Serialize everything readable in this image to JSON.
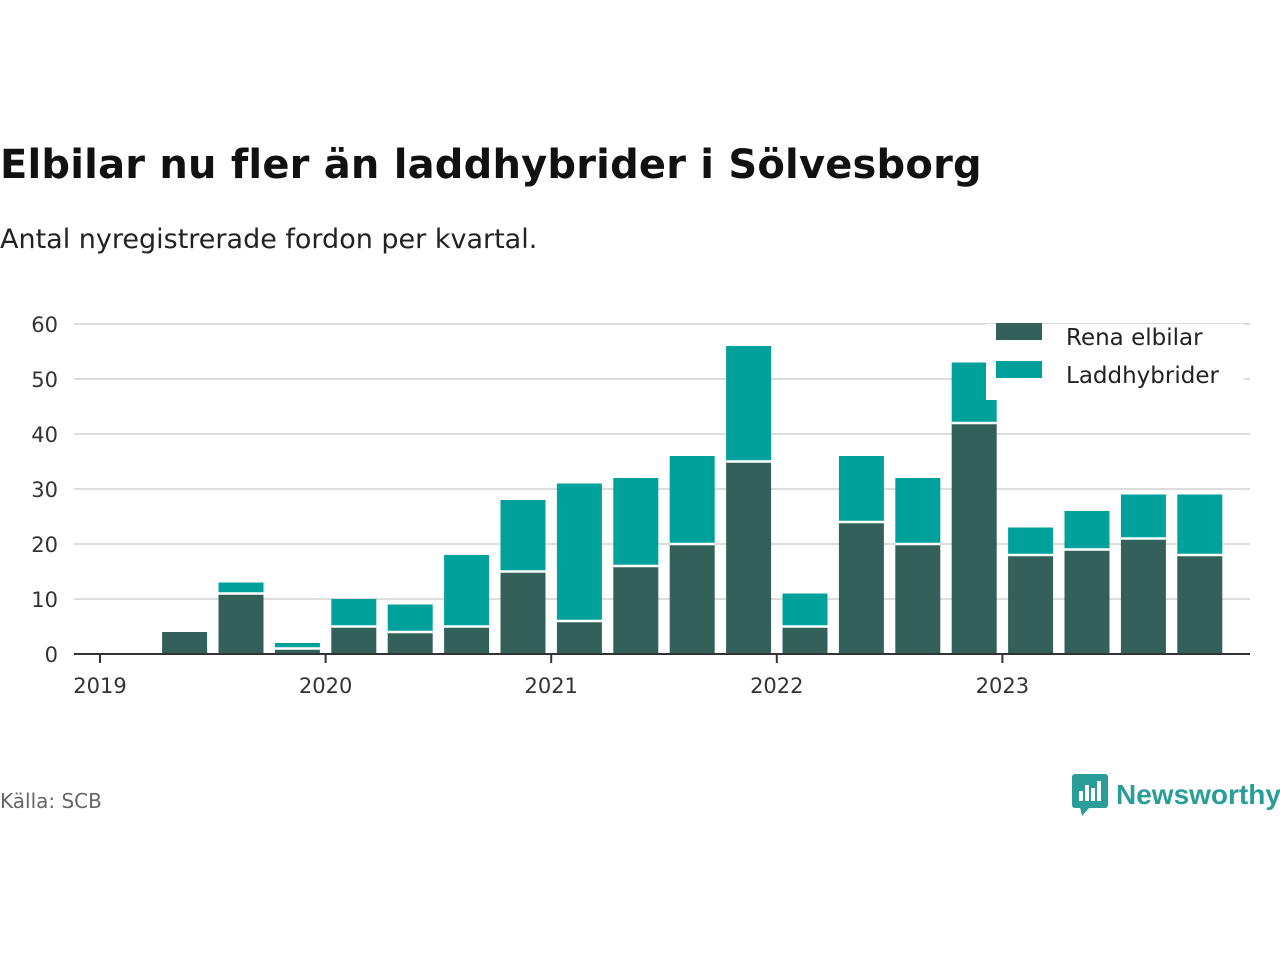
{
  "title": "Elbilar nu fler än laddhybrider i Sölvesborg",
  "subtitle": "Antal nyregistrerade fordon per kvartal.",
  "source": "Källa: SCB",
  "brand": {
    "name": "Newsworthy",
    "icon": "newsworthy-logo-icon"
  },
  "colors": {
    "electric": "#336159",
    "hybrid": "#00a19a",
    "grid": "#dddddd",
    "axis": "#333333"
  },
  "chart_data": {
    "type": "bar",
    "stacked": true,
    "title": "Elbilar nu fler än laddhybrider i Sölvesborg",
    "subtitle": "Antal nyregistrerade fordon per kvartal.",
    "xlabel": "",
    "ylabel": "",
    "ylim": [
      0,
      60
    ],
    "yticks": [
      0,
      10,
      20,
      30,
      40,
      50,
      60
    ],
    "xtick_labels": [
      "2019",
      "2020",
      "2021",
      "2022",
      "2023"
    ],
    "categories": [
      "2019 Q1",
      "2019 Q2",
      "2019 Q3",
      "2019 Q4",
      "2020 Q1",
      "2020 Q2",
      "2020 Q3",
      "2020 Q4",
      "2021 Q1",
      "2021 Q2",
      "2021 Q3",
      "2021 Q4",
      "2022 Q1",
      "2022 Q2",
      "2022 Q3",
      "2022 Q4",
      "2023 Q1",
      "2023 Q2",
      "2023 Q3",
      "2023 Q4"
    ],
    "series": [
      {
        "name": "Rena elbilar",
        "values": [
          0,
          4,
          11,
          1,
          5,
          4,
          5,
          15,
          6,
          16,
          20,
          35,
          5,
          24,
          20,
          42,
          18,
          19,
          21,
          18
        ]
      },
      {
        "name": "Laddhybrider",
        "values": [
          0,
          0,
          2,
          1,
          5,
          5,
          13,
          13,
          25,
          16,
          16,
          21,
          6,
          12,
          12,
          11,
          5,
          7,
          8,
          11
        ]
      }
    ],
    "legend_position": "top-right",
    "grid": true
  }
}
